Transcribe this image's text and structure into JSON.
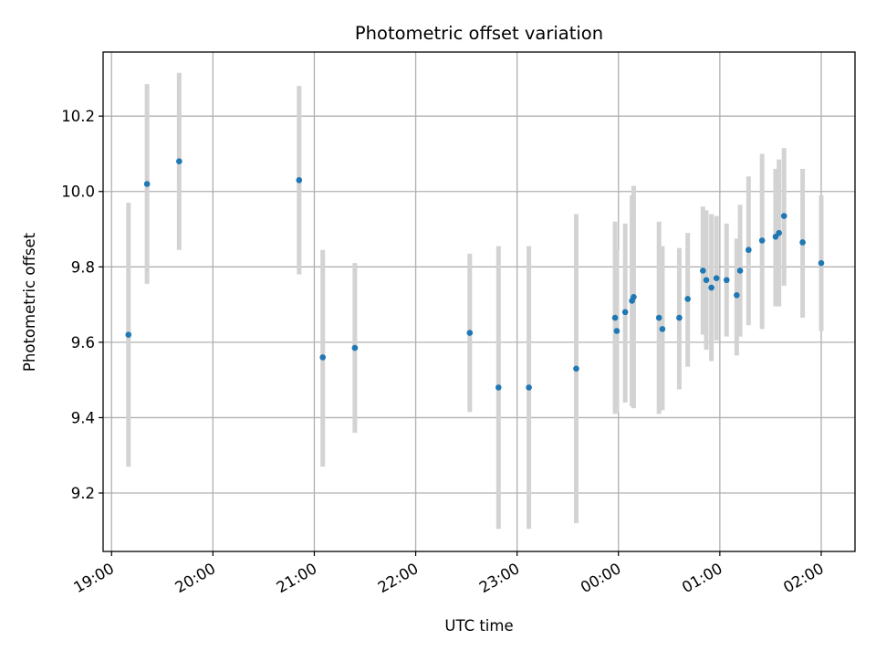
{
  "chart_data": {
    "type": "scatter",
    "title": "Photometric offset variation",
    "xlabel": "UTC time",
    "ylabel": "Photometric offset",
    "x_axis_type": "time",
    "x_range": [
      "18:55",
      "02:20"
    ],
    "ylim": [
      9.045,
      10.37
    ],
    "x_ticks": [
      "19:00",
      "20:00",
      "21:00",
      "22:00",
      "23:00",
      "00:00",
      "01:00",
      "02:00"
    ],
    "y_ticks": [
      9.2,
      9.4,
      9.6,
      9.8,
      10.0,
      10.2
    ],
    "y_tick_labels": [
      "9.2",
      "9.4",
      "9.6",
      "9.8",
      "10.0",
      "10.2"
    ],
    "grid": true,
    "tick_label_rotation": "30 degrees",
    "colors": {
      "points": "#1f77b4",
      "error_bars": "#d3d3d3",
      "grid": "#b0b0b0"
    },
    "points": [
      {
        "t": "19:10",
        "y": 9.62,
        "lo": 9.27,
        "hi": 9.97
      },
      {
        "t": "19:21",
        "y": 10.02,
        "lo": 9.755,
        "hi": 10.285
      },
      {
        "t": "19:40",
        "y": 10.08,
        "lo": 9.845,
        "hi": 10.315
      },
      {
        "t": "20:51",
        "y": 10.03,
        "lo": 9.78,
        "hi": 10.28
      },
      {
        "t": "21:05",
        "y": 9.56,
        "lo": 9.27,
        "hi": 9.845
      },
      {
        "t": "21:24",
        "y": 9.585,
        "lo": 9.36,
        "hi": 9.81
      },
      {
        "t": "22:32",
        "y": 9.625,
        "lo": 9.415,
        "hi": 9.835
      },
      {
        "t": "22:49",
        "y": 9.48,
        "lo": 9.105,
        "hi": 9.855
      },
      {
        "t": "23:07",
        "y": 9.48,
        "lo": 9.105,
        "hi": 9.855
      },
      {
        "t": "23:35",
        "y": 9.53,
        "lo": 9.12,
        "hi": 9.94
      },
      {
        "t": "23:58",
        "y": 9.665,
        "lo": 9.41,
        "hi": 9.92
      },
      {
        "t": "23:59",
        "y": 9.63,
        "lo": 9.415,
        "hi": 9.845
      },
      {
        "t": "00:04",
        "y": 9.68,
        "lo": 9.44,
        "hi": 9.915
      },
      {
        "t": "00:08",
        "y": 9.71,
        "lo": 9.43,
        "hi": 9.99
      },
      {
        "t": "00:09",
        "y": 9.72,
        "lo": 9.425,
        "hi": 10.015
      },
      {
        "t": "00:24",
        "y": 9.665,
        "lo": 9.41,
        "hi": 9.92
      },
      {
        "t": "00:26",
        "y": 9.635,
        "lo": 9.42,
        "hi": 9.855
      },
      {
        "t": "00:36",
        "y": 9.665,
        "lo": 9.475,
        "hi": 9.85
      },
      {
        "t": "00:41",
        "y": 9.715,
        "lo": 9.535,
        "hi": 9.89
      },
      {
        "t": "00:50",
        "y": 9.79,
        "lo": 9.62,
        "hi": 9.96
      },
      {
        "t": "00:52",
        "y": 9.765,
        "lo": 9.58,
        "hi": 9.95
      },
      {
        "t": "00:55",
        "y": 9.745,
        "lo": 9.55,
        "hi": 9.94
      },
      {
        "t": "00:58",
        "y": 9.77,
        "lo": 9.605,
        "hi": 9.935
      },
      {
        "t": "01:04",
        "y": 9.765,
        "lo": 9.615,
        "hi": 9.915
      },
      {
        "t": "01:10",
        "y": 9.725,
        "lo": 9.565,
        "hi": 9.875
      },
      {
        "t": "01:12",
        "y": 9.79,
        "lo": 9.615,
        "hi": 9.965
      },
      {
        "t": "01:17",
        "y": 9.845,
        "lo": 9.645,
        "hi": 10.04
      },
      {
        "t": "01:25",
        "y": 9.87,
        "lo": 9.635,
        "hi": 10.1
      },
      {
        "t": "01:33",
        "y": 9.88,
        "lo": 9.695,
        "hi": 10.06
      },
      {
        "t": "01:35",
        "y": 9.89,
        "lo": 9.695,
        "hi": 10.085
      },
      {
        "t": "01:38",
        "y": 9.935,
        "lo": 9.75,
        "hi": 10.115
      },
      {
        "t": "01:49",
        "y": 9.865,
        "lo": 9.665,
        "hi": 10.06
      },
      {
        "t": "02:00",
        "y": 9.81,
        "lo": 9.63,
        "hi": 9.99
      }
    ]
  }
}
